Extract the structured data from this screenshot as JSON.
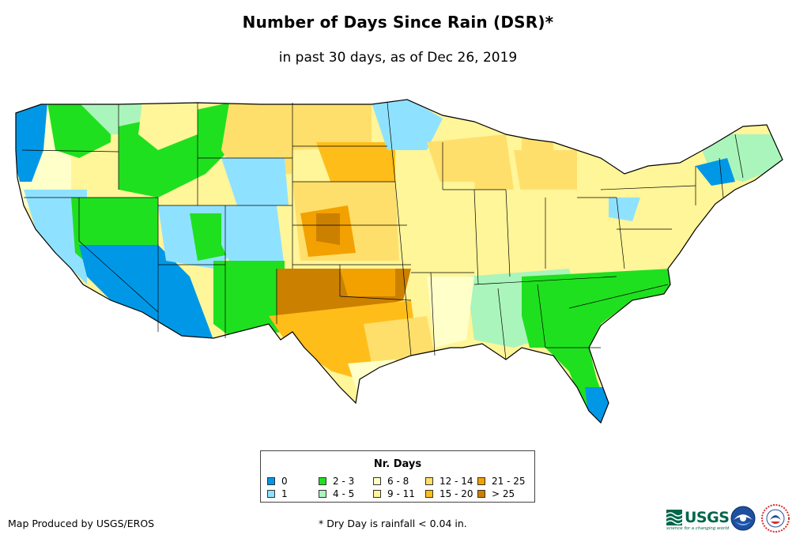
{
  "header": {
    "title": "Number of Days Since Rain (DSR)*",
    "subtitle": "in past 30 days, as of Dec 26, 2019"
  },
  "legend": {
    "title": "Nr. Days",
    "items": [
      {
        "label": "0",
        "color": "#0098e6"
      },
      {
        "label": "1",
        "color": "#8fe2ff"
      },
      {
        "label": "2 - 3",
        "color": "#1fe01f"
      },
      {
        "label": "4 - 5",
        "color": "#aaf5bb"
      },
      {
        "label": "6 - 8",
        "color": "#ffffc9"
      },
      {
        "label": "9 - 11",
        "color": "#fff599"
      },
      {
        "label": "12 - 14",
        "color": "#ffdf6b"
      },
      {
        "label": "15 - 20",
        "color": "#ffbd1a"
      },
      {
        "label": "21 - 25",
        "color": "#f2a100"
      },
      {
        "label": "> 25",
        "color": "#cc8000"
      }
    ]
  },
  "footer": {
    "credit": "Map Produced by USGS/EROS",
    "footnote": "* Dry Day is rainfall < 0.04 in.",
    "usgs_logo": "USGS",
    "usgs_tagline": "science for a changing world"
  },
  "logos": [
    "usgs-logo",
    "noaa-logo",
    "nws-logo"
  ]
}
